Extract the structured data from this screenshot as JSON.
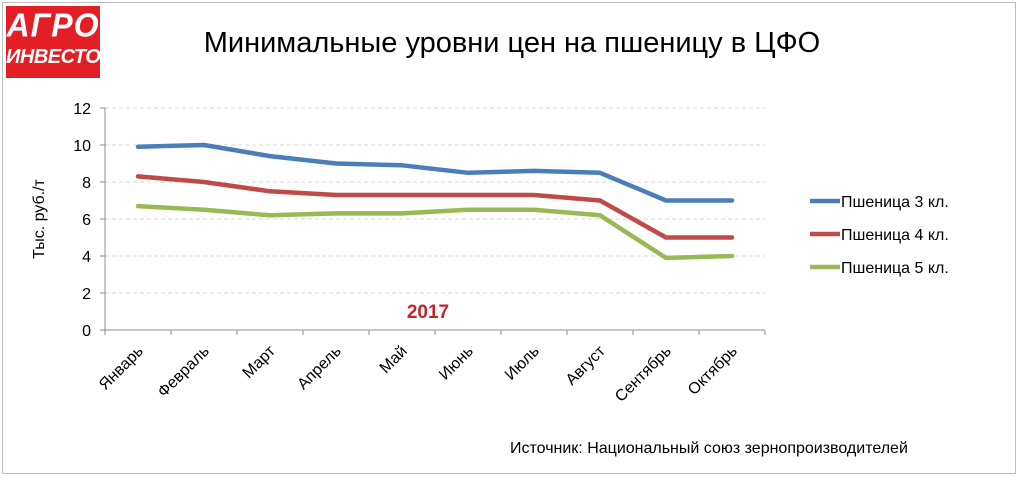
{
  "logo": {
    "line1": "АГРО",
    "line2": "ИНВЕСТОР"
  },
  "chart_data": {
    "type": "line",
    "title": "Минимальные уровни цен на пшеницу в ЦФО",
    "ylabel": "Тыс. руб./т",
    "xlabel": "",
    "annotation": "2017",
    "categories": [
      "Январь",
      "Февраль",
      "Март",
      "Апрель",
      "Май",
      "Июнь",
      "Июль",
      "Август",
      "Сентябрь",
      "Октябрь"
    ],
    "ylim": [
      0,
      12
    ],
    "yticks": [
      0,
      2,
      4,
      6,
      8,
      10,
      12
    ],
    "grid": true,
    "legend_position": "right",
    "series": [
      {
        "name": "Пшеница 3 кл.",
        "color": "#4a7ebb",
        "values": [
          9.9,
          10.0,
          9.4,
          9.0,
          8.9,
          8.5,
          8.6,
          8.5,
          7.0,
          7.0
        ]
      },
      {
        "name": "Пшеница 4 кл.",
        "color": "#be4b48",
        "values": [
          8.3,
          8.0,
          7.5,
          7.3,
          7.3,
          7.3,
          7.3,
          7.0,
          5.0,
          5.0
        ]
      },
      {
        "name": "Пшеница 5 кл.",
        "color": "#98b954",
        "values": [
          6.7,
          6.5,
          6.2,
          6.3,
          6.3,
          6.5,
          6.5,
          6.2,
          3.9,
          4.0
        ]
      }
    ]
  },
  "source": "Источник: Национальный союз зернопроизводителей",
  "colors": {
    "logo_bg": "#e31e24",
    "annotation": "#c0262d",
    "grid": "#d9d9d9"
  }
}
